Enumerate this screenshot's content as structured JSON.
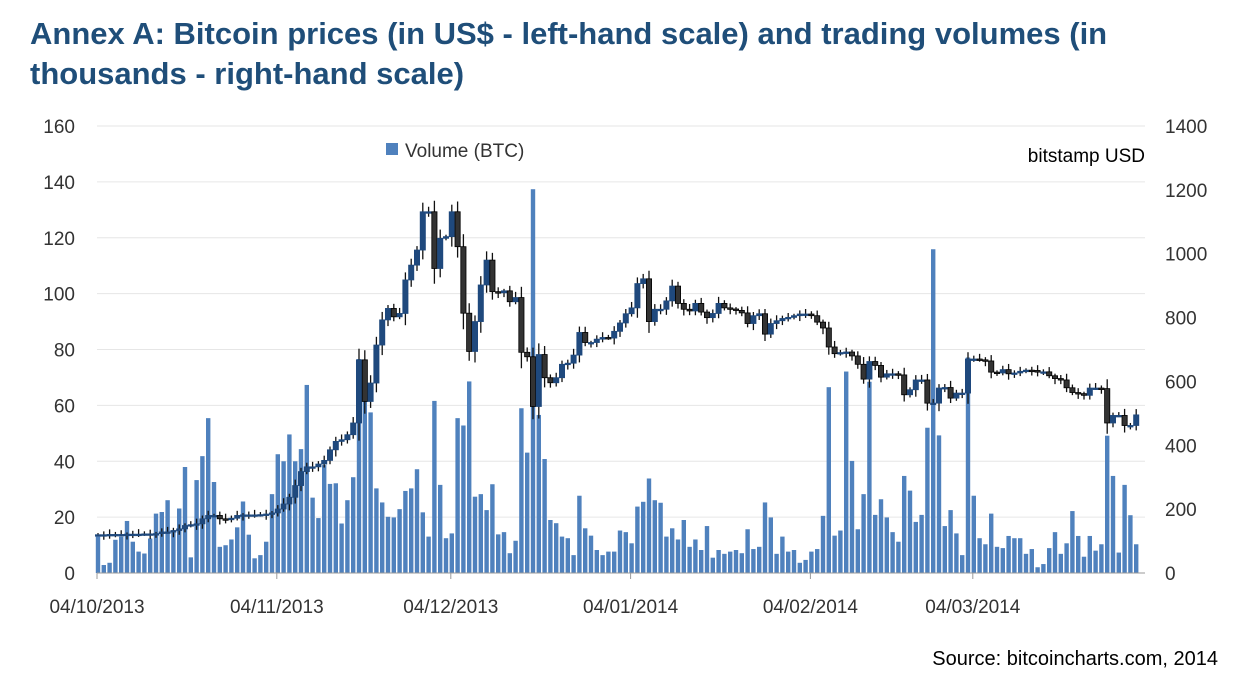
{
  "title": "Annex A: Bitcoin prices (in US$ - left-hand scale) and trading volumes (in thousands - right-hand scale)",
  "source": "Source: bitcoincharts.com, 2014",
  "chart_data": {
    "type": "candlestick+bar",
    "title": "Annex A: Bitcoin prices (in US$ - left-hand scale) and trading volumes (in thousands - right-hand scale)",
    "annotation": "bitstamp USD",
    "legend": {
      "label": "Volume (BTC)",
      "placement": "top-center"
    },
    "grid": true,
    "colors": {
      "volume": "#4F81BD",
      "up_candle": "#1F497D",
      "down_candle": "#333333",
      "grid": "#E6E6E6"
    },
    "x_start_date": "04/10/2013",
    "x_ticks": [
      "04/10/2013",
      "04/11/2013",
      "04/12/2013",
      "04/01/2014",
      "04/02/2014",
      "04/03/2014"
    ],
    "x_tick_days": [
      0,
      31,
      61,
      92,
      123,
      151
    ],
    "y_left": {
      "range": [
        0,
        160
      ],
      "ticks": [
        "0",
        "20",
        "40",
        "60",
        "80",
        "100",
        "120",
        "140",
        "160"
      ]
    },
    "y_right": {
      "range": [
        0,
        1400
      ],
      "ticks": [
        "0",
        "200",
        "400",
        "600",
        "800",
        "1000",
        "1200",
        "1400"
      ]
    },
    "close": [
      13.7,
      13.7,
      13.8,
      13.8,
      13.8,
      13.9,
      13.9,
      13.9,
      14,
      14,
      14.1,
      14.7,
      14.7,
      15.2,
      15.8,
      17,
      17.3,
      17.6,
      19.4,
      20.6,
      20.6,
      19.4,
      19.2,
      19.6,
      20.6,
      20.8,
      20.8,
      20.8,
      20.9,
      21.1,
      21.5,
      22.9,
      24.7,
      27.1,
      31.3,
      36.3,
      38,
      38,
      39,
      40.3,
      44.1,
      47.1,
      47.7,
      49.5,
      53.7,
      76.3,
      61.4,
      68,
      81.6,
      90.6,
      94.7,
      91.7,
      92.9,
      104.9,
      110.2,
      115.6,
      129.3,
      129.3,
      109,
      119.8,
      120.4,
      129.3,
      116.8,
      93,
      79.3,
      90,
      103.1,
      112,
      100.7,
      100.3,
      101,
      97.1,
      98.6,
      79,
      77.4,
      59.6,
      78.2,
      69.9,
      68.1,
      69.9,
      74.7,
      75.1,
      78,
      86.1,
      82.5,
      82.5,
      83.7,
      84.3,
      84.1,
      86.5,
      89.5,
      92.8,
      94.9,
      103.6,
      105.3,
      90,
      94.4,
      94.4,
      97.4,
      102.7,
      96.5,
      94.4,
      93.8,
      96.5,
      93.4,
      91.4,
      92.9,
      96.5,
      94.9,
      94.5,
      94,
      93.1,
      89.3,
      92.1,
      92.8,
      85.5,
      89.3,
      90.3,
      91.1,
      91.5,
      92.1,
      92.7,
      92.7,
      92.1,
      89.8,
      87.7,
      80.9,
      78.5,
      78.9,
      79.1,
      77.7,
      74.7,
      69.4,
      75.7,
      74.3,
      70.1,
      71.3,
      71.3,
      70.9,
      63.8,
      65.6,
      69.1,
      69.1,
      60.8,
      60.8,
      66.2,
      66.4,
      62.6,
      64.4,
      64.4,
      76.6,
      76.6,
      76.3,
      75.9,
      71.9,
      71.6,
      72.8,
      71.3,
      71.6,
      72.2,
      72.6,
      72.5,
      71.9,
      72,
      70.6,
      69.6,
      69.1,
      66.3,
      64.6,
      64.2,
      63.6,
      66.2,
      66.2,
      66,
      53.7,
      56.4,
      56.4,
      52.8,
      52.8,
      56.6
    ],
    "volume": [
      114,
      25,
      32,
      104,
      114,
      163,
      98,
      67,
      61,
      108,
      186,
      191,
      228,
      134,
      202,
      332,
      49,
      291,
      366,
      485,
      285,
      82,
      87,
      105,
      143,
      224,
      120,
      46,
      56,
      98,
      247,
      372,
      350,
      434,
      350,
      388,
      589,
      236,
      172,
      338,
      279,
      281,
      155,
      228,
      300,
      670,
      600,
      503,
      265,
      221,
      176,
      174,
      200,
      257,
      265,
      325,
      190,
      114,
      539,
      276,
      109,
      124,
      485,
      462,
      600,
      239,
      247,
      197,
      278,
      121,
      128,
      62,
      101,
      516,
      377,
      1202,
      495,
      357,
      166,
      156,
      114,
      109,
      56,
      242,
      140,
      117,
      72,
      56,
      67,
      67,
      133,
      128,
      93,
      208,
      223,
      296,
      228,
      220,
      114,
      140,
      105,
      166,
      82,
      105,
      72,
      147,
      48,
      72,
      60,
      67,
      72,
      62,
      137,
      75,
      82,
      221,
      174,
      60,
      114,
      67,
      72,
      32,
      41,
      67,
      75,
      179,
      582,
      117,
      133,
      631,
      351,
      137,
      247,
      599,
      182,
      231,
      174,
      128,
      98,
      304,
      258,
      160,
      182,
      455,
      1014,
      431,
      147,
      197,
      124,
      56,
      675,
      242,
      109,
      90,
      186,
      82,
      78,
      116,
      109,
      109,
      60,
      75,
      18,
      28,
      78,
      128,
      60,
      93,
      194,
      116,
      51,
      116,
      70,
      90,
      430,
      304,
      64,
      276,
      181,
      90
    ]
  }
}
